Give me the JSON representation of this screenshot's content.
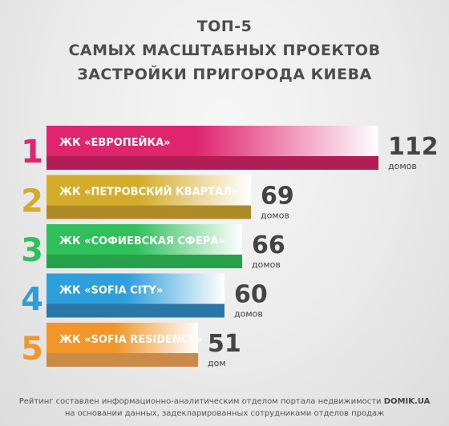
{
  "header": {
    "line1": "ТОП-5",
    "line2": "САМЫХ МАСШТАБНЫХ ПРОЕКТОВ",
    "line3": "ЗАСТРОЙКИ ПРИГОРОДА КИЕВА"
  },
  "chart_data": {
    "type": "bar",
    "orientation": "horizontal",
    "xlim": [
      0,
      112
    ],
    "categories": [
      "ЖК «ЕВРОПЕЙКА»",
      "ЖК «ПЕТРОВСКИЙ КВАРТАЛ»",
      "ЖК «СОФИЕВСКАЯ СФЕРА»",
      "ЖК «SOFIA CITY»",
      "ЖК «SOFIA RESIDENCE»"
    ],
    "ranks": [
      "1",
      "2",
      "3",
      "4",
      "5"
    ],
    "values": [
      112,
      69,
      66,
      60,
      51
    ],
    "units": [
      "домов",
      "домов",
      "домов",
      "домов",
      "дом"
    ],
    "colors": [
      "#e0256f",
      "#d4ac2c",
      "#2fbf5b",
      "#2f9fdc",
      "#f0962a"
    ],
    "dark_colors": [
      "#b01e55",
      "#b08a28",
      "#27a04b",
      "#2a76a6",
      "#c98a4a"
    ]
  },
  "footer": {
    "line1_prefix": "Рейтинг составлен информационно-аналитическим  отделом портала недвижимости ",
    "line1_brand": "DOMIK.UA",
    "line2": "на основании данных, задекларированных сотрудниками отделов продаж"
  }
}
